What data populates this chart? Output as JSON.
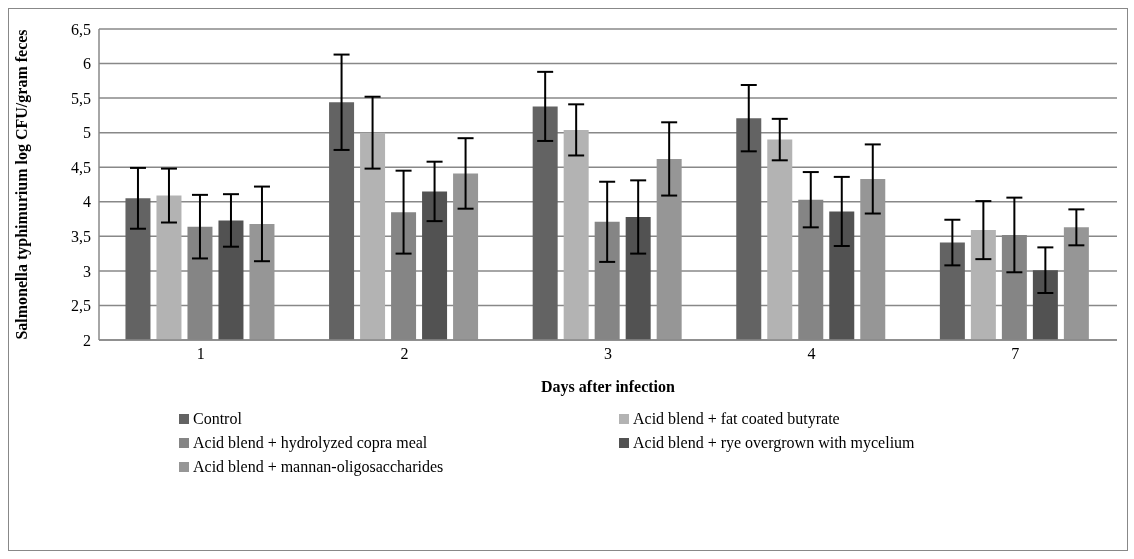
{
  "chart_data": {
    "type": "bar",
    "xlabel": "Days after infection",
    "ylabel": "Salmonella typhimurium log CFU/gram feces",
    "categories": [
      "1",
      "2",
      "3",
      "4",
      "7"
    ],
    "series": [
      {
        "name": "Control",
        "color": "#636363",
        "values": [
          4.05,
          5.44,
          5.38,
          5.21,
          3.41
        ],
        "errors": [
          0.44,
          0.69,
          0.5,
          0.48,
          0.33
        ]
      },
      {
        "name": "Acid blend + fat coated butyrate",
        "color": "#b3b3b3",
        "values": [
          4.09,
          5.0,
          5.04,
          4.9,
          3.59
        ],
        "errors": [
          0.39,
          0.52,
          0.37,
          0.3,
          0.42
        ]
      },
      {
        "name": "Acid blend + hydrolyzed copra meal",
        "color": "#858585",
        "values": [
          3.64,
          3.85,
          3.71,
          4.03,
          3.52
        ],
        "errors": [
          0.46,
          0.6,
          0.58,
          0.4,
          0.54
        ]
      },
      {
        "name": "Acid blend + rye overgrown with mycelium",
        "color": "#525252",
        "values": [
          3.73,
          4.15,
          3.78,
          3.86,
          3.01
        ],
        "errors": [
          0.38,
          0.43,
          0.53,
          0.5,
          0.33
        ]
      },
      {
        "name": "Acid blend + mannan-oligosaccharides",
        "color": "#969696",
        "values": [
          3.68,
          4.41,
          4.62,
          4.33,
          3.63
        ],
        "errors": [
          0.54,
          0.51,
          0.53,
          0.5,
          0.26
        ]
      }
    ],
    "ylim": [
      2,
      6.5
    ],
    "yticks": [
      2,
      {
        "value": 2.5,
        "label": "2,5"
      },
      3,
      {
        "value": 3.5,
        "label": "3,5"
      },
      4,
      {
        "value": 4.5,
        "label": "4,5"
      },
      5,
      {
        "value": 5.5,
        "label": "5,5"
      },
      6,
      {
        "value": 6.5,
        "label": "6,5"
      }
    ],
    "grid": "y",
    "legend": "bottom"
  }
}
